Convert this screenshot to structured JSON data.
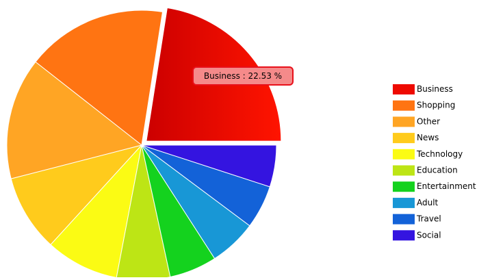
{
  "chart_data": {
    "type": "pie",
    "categories": [
      "Business",
      "Shopping",
      "Other",
      "News",
      "Technology",
      "Education",
      "Entertainment",
      "Adult",
      "Travel",
      "Social"
    ],
    "values": [
      22.53,
      16.9,
      14.6,
      9.2,
      8.8,
      6.4,
      5.7,
      5.7,
      5.2,
      5.0
    ],
    "colors": [
      "#ee0a00",
      "#ff7412",
      "#ffa524",
      "#ffcb1c",
      "#fbfb14",
      "#bde515",
      "#14d21e",
      "#1897d6",
      "#1362d8",
      "#3414e0"
    ],
    "exploded": 0,
    "tooltip": "Business : 22.53 %",
    "legend": "right"
  }
}
